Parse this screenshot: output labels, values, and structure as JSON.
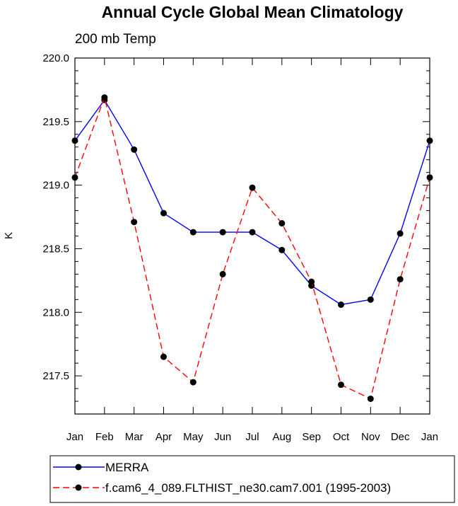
{
  "chart_data": {
    "type": "line",
    "title": "Annual Cycle Global Mean Climatology",
    "subtitle": "200 mb Temp",
    "xlabel": "",
    "ylabel": "K",
    "categories": [
      "Jan",
      "Feb",
      "Mar",
      "Apr",
      "May",
      "Jun",
      "Jul",
      "Aug",
      "Sep",
      "Oct",
      "Nov",
      "Dec",
      "Jan"
    ],
    "ylim": [
      217.2,
      220.0
    ],
    "yticks": [
      "217.5",
      "218.0",
      "218.5",
      "219.0",
      "219.5",
      "220.0"
    ],
    "grid": false,
    "legend_position": "bottom",
    "series": [
      {
        "name": "MERRA",
        "color": "#0000ff",
        "dash": "solid",
        "values": [
          219.35,
          219.67,
          219.28,
          218.78,
          218.63,
          218.63,
          218.63,
          218.49,
          218.21,
          218.06,
          218.1,
          218.62,
          219.35
        ]
      },
      {
        "name": "f.cam6_4_089.FLTHIST_ne30.cam7.001 (1995-2003)",
        "color": "#ff0000",
        "dash": "dashed",
        "values": [
          219.06,
          219.69,
          218.71,
          217.65,
          217.45,
          218.3,
          218.98,
          218.7,
          218.24,
          217.43,
          217.32,
          218.26,
          219.06
        ]
      }
    ]
  }
}
